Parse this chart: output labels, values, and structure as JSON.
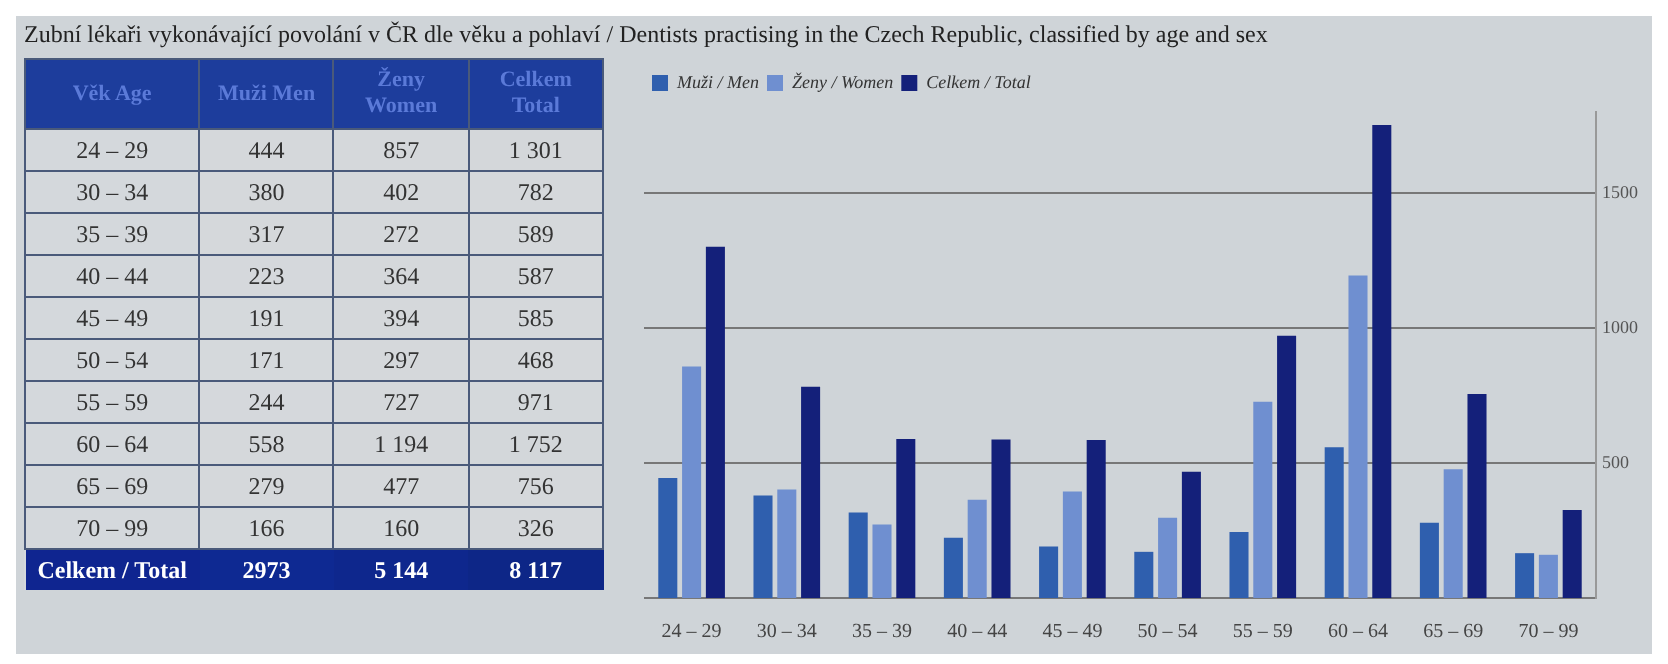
{
  "chart_data": [
    {
      "type": "heatmap",
      "title": "Zubní lékaři vykonávající povolání v ČR dle věku a pohlaví / Dentists practising in the Czech Republic, classified by age and sex",
      "ylabel": "Věk Age",
      "categories": [
        "Muži Men",
        "Ženy Women",
        "Celkem Total"
      ],
      "y_categories": [
        "24 – 29",
        "30 – 34",
        "35 – 39",
        "40 – 44",
        "45 – 49",
        "50 – 54",
        "55 – 59",
        "60 – 64",
        "65 – 69",
        "70 – 99",
        "Celkem / Total"
      ],
      "cells": [
        [
          444,
          857,
          1301
        ],
        [
          380,
          402,
          782
        ],
        [
          317,
          272,
          589
        ],
        [
          223,
          364,
          587
        ],
        [
          191,
          394,
          585
        ],
        [
          171,
          297,
          468
        ],
        [
          244,
          727,
          971
        ],
        [
          558,
          1194,
          1752
        ],
        [
          279,
          477,
          756
        ],
        [
          166,
          160,
          326
        ],
        [
          2973,
          5144,
          8117
        ]
      ],
      "cell_labels": [
        [
          "444",
          "857",
          "1 301"
        ],
        [
          "380",
          "402",
          "782"
        ],
        [
          "317",
          "272",
          "589"
        ],
        [
          "223",
          "364",
          "587"
        ],
        [
          "191",
          "394",
          "585"
        ],
        [
          "171",
          "297",
          "468"
        ],
        [
          "244",
          "727",
          "971"
        ],
        [
          "558",
          "1 194",
          "1 752"
        ],
        [
          "279",
          "477",
          "756"
        ],
        [
          "166",
          "160",
          "326"
        ],
        [
          "2973",
          "5 144",
          "8 117"
        ]
      ]
    },
    {
      "type": "bar",
      "categories": [
        "24 – 29",
        "30 – 34",
        "35 – 39",
        "40 – 44",
        "45 – 49",
        "50 – 54",
        "55 – 59",
        "60 – 64",
        "65 – 69",
        "70 – 99"
      ],
      "series": [
        {
          "name": "Muži / Men",
          "color": "#2f5fae",
          "values": [
            444,
            380,
            317,
            223,
            191,
            171,
            244,
            558,
            279,
            166
          ]
        },
        {
          "name": "Ženy / Women",
          "color": "#6f8fd0",
          "values": [
            857,
            402,
            272,
            364,
            394,
            297,
            727,
            1194,
            477,
            160
          ]
        },
        {
          "name": "Celkem / Total",
          "color": "#14207a",
          "values": [
            1301,
            782,
            589,
            587,
            585,
            468,
            971,
            1752,
            756,
            326
          ]
        }
      ],
      "ylim": [
        0,
        1800
      ],
      "yticks": [
        500,
        1000,
        1500
      ],
      "grid": "y",
      "legend": "top left"
    }
  ]
}
